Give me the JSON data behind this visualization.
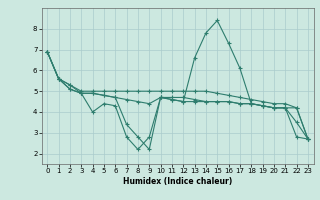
{
  "bg_color": "#cce8e0",
  "grid_color": "#aacccc",
  "line_color": "#2e7d6e",
  "xlabel": "Humidex (Indice chaleur)",
  "xlim": [
    -0.5,
    23.5
  ],
  "ylim": [
    1.5,
    9.0
  ],
  "xticks": [
    0,
    1,
    2,
    3,
    4,
    5,
    6,
    7,
    8,
    9,
    10,
    11,
    12,
    13,
    14,
    15,
    16,
    17,
    18,
    19,
    20,
    21,
    22,
    23
  ],
  "yticks": [
    2,
    3,
    4,
    5,
    6,
    7,
    8
  ],
  "lines": [
    {
      "x": [
        0,
        1,
        2,
        3,
        4,
        5,
        6,
        7,
        8,
        9,
        10,
        11,
        12,
        13,
        14,
        15,
        16,
        17,
        18,
        19,
        20,
        21,
        22,
        23
      ],
      "y": [
        6.9,
        5.6,
        5.3,
        4.9,
        4.0,
        4.4,
        4.3,
        2.8,
        2.2,
        2.8,
        4.7,
        4.6,
        4.5,
        6.6,
        7.8,
        8.4,
        7.3,
        6.1,
        4.4,
        4.3,
        4.2,
        4.2,
        2.8,
        2.7
      ]
    },
    {
      "x": [
        0,
        1,
        2,
        3,
        4,
        5,
        6,
        7,
        8,
        9,
        10,
        11,
        12,
        13,
        14,
        15,
        16,
        17,
        18,
        19,
        20,
        21,
        22,
        23
      ],
      "y": [
        6.9,
        5.6,
        5.1,
        4.9,
        4.9,
        4.8,
        4.7,
        3.4,
        2.8,
        2.2,
        4.7,
        4.6,
        4.5,
        4.5,
        4.5,
        4.5,
        4.5,
        4.4,
        4.4,
        4.3,
        4.2,
        4.2,
        4.2,
        2.7
      ]
    },
    {
      "x": [
        0,
        1,
        2,
        3,
        4,
        5,
        6,
        7,
        8,
        9,
        10,
        11,
        12,
        13,
        14,
        15,
        16,
        17,
        18,
        19,
        20,
        21,
        22,
        23
      ],
      "y": [
        6.9,
        5.6,
        5.1,
        4.9,
        4.9,
        4.8,
        4.7,
        4.6,
        4.5,
        4.4,
        4.7,
        4.7,
        4.7,
        4.6,
        4.5,
        4.5,
        4.5,
        4.4,
        4.4,
        4.3,
        4.2,
        4.2,
        3.5,
        2.7
      ]
    },
    {
      "x": [
        0,
        1,
        2,
        3,
        4,
        5,
        6,
        7,
        8,
        9,
        10,
        11,
        12,
        13,
        14,
        15,
        16,
        17,
        18,
        19,
        20,
        21,
        22,
        23
      ],
      "y": [
        6.9,
        5.6,
        5.3,
        5.0,
        5.0,
        5.0,
        5.0,
        5.0,
        5.0,
        5.0,
        5.0,
        5.0,
        5.0,
        5.0,
        5.0,
        4.9,
        4.8,
        4.7,
        4.6,
        4.5,
        4.4,
        4.4,
        4.2,
        2.7
      ]
    }
  ],
  "figsize": [
    3.2,
    2.0
  ],
  "dpi": 100
}
